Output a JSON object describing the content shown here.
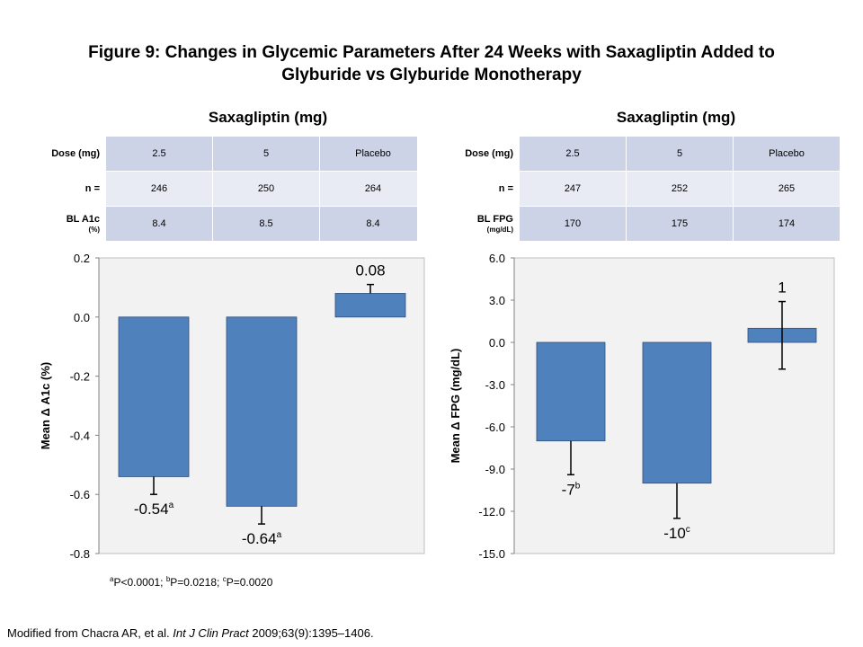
{
  "title_line1": "Figure 9: Changes in Glycemic Parameters After 24 Weeks with Saxagliptin Added to",
  "title_line2": "Glyburide vs Glyburide Monotherapy",
  "panels": [
    {
      "heading": "Saxagliptin (mg)",
      "rows": [
        {
          "label": "Dose (mg)",
          "sub": "",
          "cells": [
            "2.5",
            "5",
            "Placebo"
          ]
        },
        {
          "label": "n =",
          "sub": "",
          "cells": [
            "246",
            "250",
            "264"
          ]
        },
        {
          "label": "BL A1c",
          "sub": "(%)",
          "cells": [
            "8.4",
            "8.5",
            "8.4"
          ]
        }
      ]
    },
    {
      "heading": "Saxagliptin (mg)",
      "rows": [
        {
          "label": "Dose (mg)",
          "sub": "",
          "cells": [
            "2.5",
            "5",
            "Placebo"
          ]
        },
        {
          "label": "n =",
          "sub": "",
          "cells": [
            "247",
            "252",
            "265"
          ]
        },
        {
          "label": "BL FPG",
          "sub": "(mg/dL)",
          "cells": [
            "170",
            "175",
            "174"
          ]
        }
      ]
    }
  ],
  "chart_data": [
    {
      "type": "bar",
      "categories": [
        "2.5",
        "5",
        "Placebo"
      ],
      "values": [
        -0.54,
        -0.64,
        0.08
      ],
      "error_low": [
        -0.6,
        -0.7,
        0.08
      ],
      "error_high": [
        -0.54,
        -0.64,
        0.11
      ],
      "data_labels": [
        "-0.54",
        "-0.64",
        "0.08"
      ],
      "label_sup": [
        "a",
        "a",
        ""
      ],
      "ylabel": "Mean Δ A1c (%)",
      "ylim": [
        -0.8,
        0.2
      ],
      "yticks": [
        "0.2",
        "0.0",
        "-0.2",
        "-0.4",
        "-0.6",
        "-0.8"
      ],
      "ytick_values": [
        0.2,
        0.0,
        -0.2,
        -0.4,
        -0.6,
        -0.8
      ],
      "bar_color": "#4f81bd",
      "plot_bg": "#f2f2f2"
    },
    {
      "type": "bar",
      "categories": [
        "2.5",
        "5",
        "Placebo"
      ],
      "values": [
        -7,
        -10,
        1
      ],
      "error_low": [
        -9.4,
        -12.5,
        -1.9
      ],
      "error_high": [
        -7,
        -10,
        2.9
      ],
      "data_labels": [
        "-7",
        "-10",
        "1"
      ],
      "label_sup": [
        "b",
        "c",
        ""
      ],
      "ylabel": "Mean Δ FPG (mg/dL)",
      "ylim": [
        -15,
        6
      ],
      "yticks": [
        "6.0",
        "3.0",
        "0.0",
        "-3.0",
        "-6.0",
        "-9.0",
        "-12.0",
        "-15.0"
      ],
      "ytick_values": [
        6,
        3,
        0,
        -3,
        -6,
        -9,
        -12,
        -15
      ],
      "bar_color": "#4f81bd",
      "plot_bg": "#f2f2f2"
    }
  ],
  "footnote": {
    "a_sup": "a",
    "a_text": "P<0.0001; ",
    "b_sup": "b",
    "b_text": "P=0.0218; ",
    "c_sup": "c",
    "c_text": "P=0.0020"
  },
  "source": {
    "prefix": "Modified from Chacra AR, et al.  ",
    "journal": "Int J Clin Pract",
    "suffix": " 2009;63(9):1395–1406."
  }
}
